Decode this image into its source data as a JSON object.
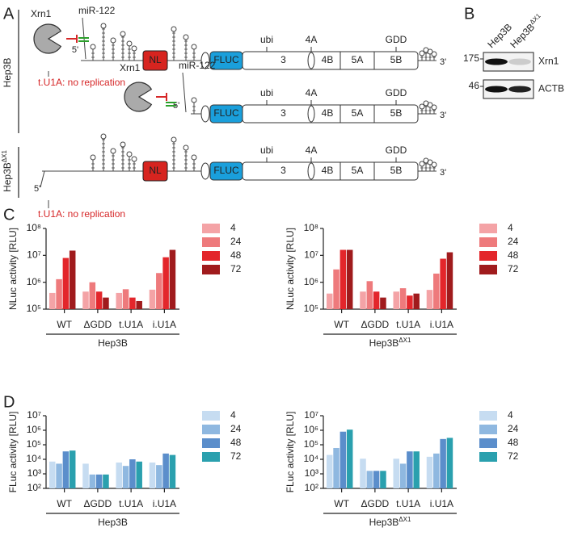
{
  "diagram": {
    "panel": "A",
    "cell_lines": [
      {
        "base": "Hep3B"
      },
      {
        "base": "Hep3B",
        "sup": "ΔX1"
      }
    ],
    "rows": [
      {
        "xrn1": "Xrn1",
        "mir": "miR-122",
        "five": "5'",
        "nl": "NL",
        "genes": [
          "FLUC",
          "3",
          "4B",
          "5A",
          "5B"
        ],
        "ticks": [
          "ubi",
          "4A",
          "GDD"
        ],
        "three": "3'",
        "note": "t.U1A: no replication"
      },
      {
        "xrn1": "Xrn1",
        "mir": "miR-122",
        "five": "5'",
        "genes": [
          "FLUC",
          "3",
          "4B",
          "5A",
          "5B"
        ],
        "ticks": [
          "ubi",
          "4A",
          "GDD"
        ],
        "three": "3'"
      },
      {
        "five": "5'",
        "nl": "NL",
        "genes": [
          "FLUC",
          "3",
          "4B",
          "5A",
          "5B"
        ],
        "ticks": [
          "ubi",
          "4A",
          "GDD"
        ],
        "three": "3'",
        "note": "t.U1A: no replication"
      }
    ]
  },
  "blot": {
    "panel": "B",
    "lanes": [
      {
        "base": "Hep3B"
      },
      {
        "base": "Hep3B",
        "sup": "ΔX1"
      }
    ],
    "markers": [
      175,
      46
    ],
    "bands": [
      "Xrn1",
      "ACTB"
    ]
  },
  "chart_data": [
    {
      "type": "bar",
      "panel": "C",
      "ylabel": "NLuc activity [RLU]",
      "group_label": "Hep3B",
      "log_scale": true,
      "categories": [
        "WT",
        "ΔGDD",
        "t.U1A",
        "i.U1A"
      ],
      "ylim": [
        100000,
        100000000
      ],
      "yticks": [
        {
          "value": 100000,
          "label": "10⁵"
        },
        {
          "value": 1000000,
          "label": "10⁶"
        },
        {
          "value": 10000000,
          "label": "10⁷"
        },
        {
          "value": 100000000,
          "label": "10⁸"
        }
      ],
      "series": [
        {
          "name": "4",
          "color": "#f4a3a6",
          "values": [
            400000,
            450000,
            400000,
            530000
          ]
        },
        {
          "name": "24",
          "color": "#ee7a7c",
          "values": [
            1300000,
            1000000,
            550000,
            2200000
          ]
        },
        {
          "name": "48",
          "color": "#e3262b",
          "values": [
            8000000,
            450000,
            270000,
            8500000
          ]
        },
        {
          "name": "72",
          "color": "#a01b1d",
          "values": [
            15000000,
            270000,
            200000,
            16000000
          ]
        }
      ]
    },
    {
      "type": "bar",
      "ylabel": "NLuc activity [RLU]",
      "group_label": "Hep3B",
      "group_label_sup": "ΔX1",
      "log_scale": true,
      "categories": [
        "WT",
        "ΔGDD",
        "t.U1A",
        "i.U1A"
      ],
      "ylim": [
        100000,
        100000000
      ],
      "yticks": [
        {
          "value": 100000,
          "label": "10⁵"
        },
        {
          "value": 1000000,
          "label": "10⁶"
        },
        {
          "value": 10000000,
          "label": "10⁷"
        },
        {
          "value": 100000000,
          "label": "10⁸"
        }
      ],
      "series": [
        {
          "name": "4",
          "color": "#f4a3a6",
          "values": [
            380000,
            450000,
            450000,
            520000
          ]
        },
        {
          "name": "24",
          "color": "#ee7a7c",
          "values": [
            3000000,
            1100000,
            600000,
            2100000
          ]
        },
        {
          "name": "48",
          "color": "#e3262b",
          "values": [
            16000000,
            450000,
            320000,
            7500000
          ]
        },
        {
          "name": "72",
          "color": "#a01b1d",
          "values": [
            16000000,
            270000,
            380000,
            13000000
          ]
        }
      ]
    },
    {
      "type": "bar",
      "panel": "D",
      "ylabel": "FLuc activity [RLU]",
      "group_label": "Hep3B",
      "log_scale": true,
      "categories": [
        "WT",
        "ΔGDD",
        "t.U1A",
        "i.U1A"
      ],
      "ylim": [
        100,
        10000000
      ],
      "yticks": [
        {
          "value": 100,
          "label": "10²"
        },
        {
          "value": 1000,
          "label": "10³"
        },
        {
          "value": 10000,
          "label": "10⁴"
        },
        {
          "value": 100000,
          "label": "10⁵"
        },
        {
          "value": 1000000,
          "label": "10⁶"
        },
        {
          "value": 10000000,
          "label": "10⁷"
        }
      ],
      "series": [
        {
          "name": "4",
          "color": "#c6dcf1",
          "values": [
            7000,
            5000,
            6000,
            6000
          ]
        },
        {
          "name": "24",
          "color": "#8fb8e0",
          "values": [
            5000,
            900,
            3500,
            4000
          ]
        },
        {
          "name": "48",
          "color": "#5b8ecb",
          "values": [
            35000,
            900,
            10000,
            25000
          ]
        },
        {
          "name": "72",
          "color": "#2aa0ae",
          "values": [
            40000,
            900,
            7000,
            20000
          ]
        }
      ]
    },
    {
      "type": "bar",
      "ylabel": "FLuc activity [RLU]",
      "group_label": "Hep3B",
      "group_label_sup": "ΔX1",
      "log_scale": true,
      "categories": [
        "WT",
        "ΔGDD",
        "t.U1A",
        "i.U1A"
      ],
      "ylim": [
        100,
        10000000
      ],
      "yticks": [
        {
          "value": 100,
          "label": "10²"
        },
        {
          "value": 1000,
          "label": "10³"
        },
        {
          "value": 10000,
          "label": "10⁴"
        },
        {
          "value": 100000,
          "label": "10⁵"
        },
        {
          "value": 1000000,
          "label": "10⁶"
        },
        {
          "value": 10000000,
          "label": "10⁷"
        }
      ],
      "series": [
        {
          "name": "4",
          "color": "#c6dcf1",
          "values": [
            20000,
            11000,
            11000,
            15000
          ]
        },
        {
          "name": "24",
          "color": "#8fb8e0",
          "values": [
            60000,
            1600,
            5000,
            25000
          ]
        },
        {
          "name": "48",
          "color": "#5b8ecb",
          "values": [
            800000,
            1600,
            35000,
            250000
          ]
        },
        {
          "name": "72",
          "color": "#2aa0ae",
          "values": [
            1100000,
            1600,
            35000,
            300000
          ]
        }
      ]
    }
  ]
}
